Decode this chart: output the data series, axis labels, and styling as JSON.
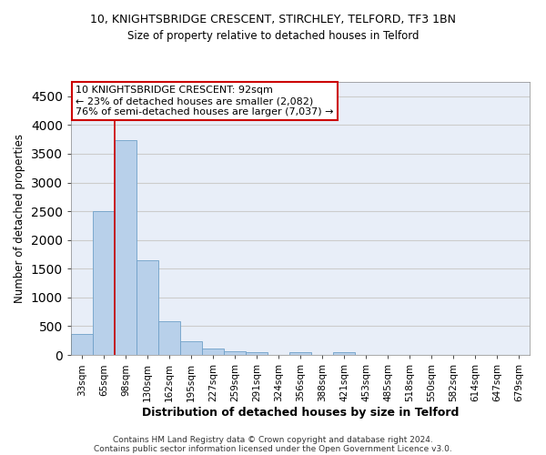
{
  "title_line1": "10, KNIGHTSBRIDGE CRESCENT, STIRCHLEY, TELFORD, TF3 1BN",
  "title_line2": "Size of property relative to detached houses in Telford",
  "xlabel": "Distribution of detached houses by size in Telford",
  "ylabel": "Number of detached properties",
  "categories": [
    "33sqm",
    "65sqm",
    "98sqm",
    "130sqm",
    "162sqm",
    "195sqm",
    "227sqm",
    "259sqm",
    "291sqm",
    "324sqm",
    "356sqm",
    "388sqm",
    "421sqm",
    "453sqm",
    "485sqm",
    "518sqm",
    "550sqm",
    "582sqm",
    "614sqm",
    "647sqm",
    "679sqm"
  ],
  "values": [
    370,
    2500,
    3740,
    1640,
    580,
    230,
    105,
    60,
    50,
    0,
    50,
    0,
    50,
    0,
    0,
    0,
    0,
    0,
    0,
    0,
    0
  ],
  "bar_color": "#b8d0ea",
  "bar_edge_color": "#6fa0c8",
  "annotation_text_line1": "10 KNIGHTSBRIDGE CRESCENT: 92sqm",
  "annotation_text_line2": "← 23% of detached houses are smaller (2,082)",
  "annotation_text_line3": "76% of semi-detached houses are larger (7,037) →",
  "annotation_box_color": "#ffffff",
  "annotation_box_edge_color": "#cc0000",
  "ylim": [
    0,
    4750
  ],
  "yticks": [
    0,
    500,
    1000,
    1500,
    2000,
    2500,
    3000,
    3500,
    4000,
    4500
  ],
  "grid_color": "#cccccc",
  "bg_color": "#e8eef8",
  "footer_line1": "Contains HM Land Registry data © Crown copyright and database right 2024.",
  "footer_line2": "Contains public sector information licensed under the Open Government Licence v3.0."
}
